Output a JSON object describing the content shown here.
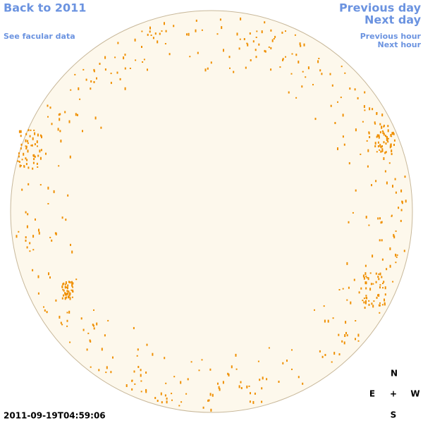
{
  "header": {
    "back_link": "Back to 2011",
    "facular_link": "See facular data",
    "previous_day": "Previous day",
    "next_day": "Next day",
    "previous_hour": "Previous hour",
    "next_hour": "Next hour"
  },
  "timestamp": "2011-09-19T04:59:06",
  "compass": {
    "north": "N",
    "east": "E",
    "center": "+",
    "west": "W",
    "south": "S"
  }
}
